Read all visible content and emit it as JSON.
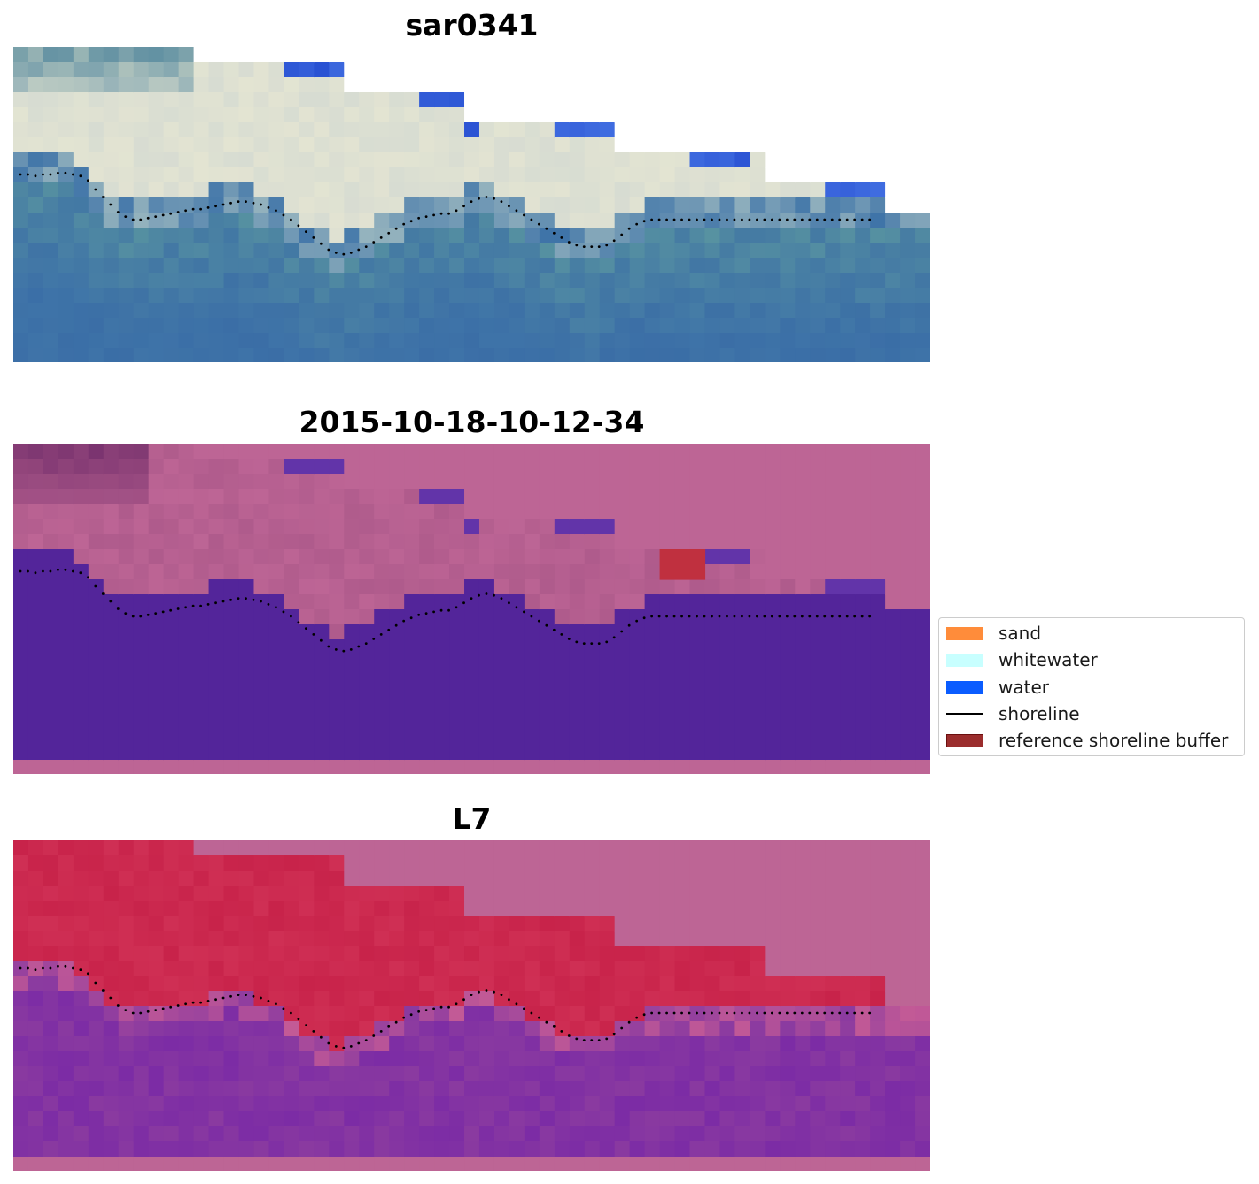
{
  "panels": [
    {
      "title": "sar0341",
      "kind": "rgb"
    },
    {
      "title": "2015-10-18-10-12-34",
      "kind": "classification"
    },
    {
      "title": "L7",
      "kind": "index"
    }
  ],
  "legend": {
    "items": [
      {
        "label": "sand",
        "color": "#ff8c3a",
        "type": "patch"
      },
      {
        "label": "whitewater",
        "color": "#c8ffff",
        "type": "patch"
      },
      {
        "label": "water",
        "color": "#0a5cff",
        "type": "patch"
      },
      {
        "label": "shoreline",
        "color": "#000000",
        "type": "line"
      },
      {
        "label": "reference shoreline buffer",
        "color": "#9b2d2d",
        "edge": "#6b0f0f",
        "type": "patch"
      }
    ]
  },
  "colors": {
    "no_data_fill": "#bd6595",
    "water_class": "#53259a",
    "sea_blue": "#3f74a8",
    "land_red": "#c8234a",
    "sea_purple": "#8a3aa0"
  },
  "chart_data": {
    "type": "heatmap",
    "grid": "off",
    "legend_placement": "right",
    "shoreline": {
      "x": [
        0.0,
        0.5,
        1.0,
        1.5,
        2.0,
        2.5,
        3.0,
        3.5,
        4.0,
        4.5,
        5.0,
        5.5,
        6.0,
        6.5,
        7.0,
        7.5,
        8.0,
        8.5,
        9.0,
        9.5,
        10.0,
        10.5,
        11.0,
        11.5,
        12.0,
        12.5,
        13.0,
        13.5,
        14.0,
        14.5,
        15.0,
        15.5,
        16.0,
        16.5,
        17.0,
        17.5,
        18.0,
        18.5,
        19.0,
        19.5,
        20.0,
        20.5,
        21.0,
        21.5,
        22.0,
        22.5,
        23.0,
        23.5,
        24.0,
        24.5,
        25.0,
        25.5,
        26.0,
        26.5,
        27.0,
        27.5,
        28.0,
        28.5,
        29.0,
        29.5,
        30.0,
        30.5,
        31.0,
        31.5,
        32.0,
        32.5,
        33.0,
        33.5,
        34.0,
        34.5,
        35.0,
        35.5,
        36.0,
        36.5,
        37.0,
        37.5,
        38.0,
        38.5,
        39.0,
        39.5,
        40.0,
        40.5,
        41.0,
        41.5,
        42.0,
        42.5,
        43.0,
        43.5,
        44.0,
        44.5,
        45.0,
        45.5,
        46.0,
        46.5,
        47.0,
        47.5,
        48.0,
        48.5,
        49.0,
        49.5,
        50.0,
        50.5,
        51.0,
        51.5,
        52.0,
        52.5,
        53.0,
        53.5,
        54.0,
        54.5,
        55.0,
        55.5,
        56.0,
        56.5,
        57.0
      ],
      "y": [
        8.0,
        8.0,
        8.1,
        8.0,
        8.0,
        7.9,
        7.9,
        8.0,
        8.1,
        8.4,
        9.0,
        9.5,
        10.0,
        10.5,
        10.8,
        11.0,
        11.0,
        10.9,
        10.8,
        10.7,
        10.6,
        10.5,
        10.4,
        10.3,
        10.3,
        10.2,
        10.1,
        10.0,
        9.9,
        9.8,
        9.8,
        9.9,
        10.0,
        10.2,
        10.4,
        10.7,
        11.0,
        11.4,
        11.8,
        12.2,
        12.6,
        13.0,
        13.2,
        13.3,
        13.2,
        13.0,
        12.8,
        12.5,
        12.2,
        11.9,
        11.6,
        11.3,
        11.1,
        10.9,
        10.8,
        10.7,
        10.6,
        10.6,
        10.4,
        10.1,
        9.8,
        9.6,
        9.5,
        9.6,
        9.8,
        10.1,
        10.4,
        10.7,
        11.0,
        11.3,
        11.6,
        11.9,
        12.2,
        12.5,
        12.7,
        12.8,
        12.8,
        12.8,
        12.7,
        12.4,
        12.0,
        11.6,
        11.3,
        11.1,
        11.0,
        11.0,
        11.0,
        11.0,
        11.0,
        11.0,
        11.0,
        11.0,
        11.0,
        11.0,
        11.0,
        11.0,
        11.0,
        11.0,
        11.0,
        11.0,
        11.0,
        11.0,
        11.0,
        11.0,
        11.0,
        11.0,
        11.0,
        11.0,
        11.0,
        11.0,
        11.0,
        11.0,
        11.0,
        11.0,
        11.0
      ]
    }
  }
}
